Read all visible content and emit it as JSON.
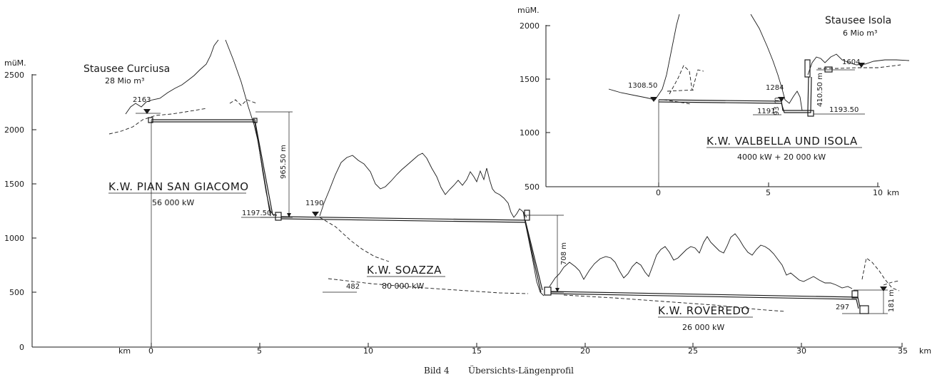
{
  "caption": {
    "prefix": "Bild 4",
    "title": "Übersichts-Längenprofil"
  },
  "main_axis": {
    "y_unit": "müM.",
    "y_ticks": [
      "2500",
      "2000",
      "1500",
      "1000",
      "500",
      "0"
    ],
    "x_ticks": [
      "0",
      "5",
      "10",
      "15",
      "20",
      "25",
      "30",
      "35"
    ],
    "x_unit": "km",
    "x_unit_left": "km"
  },
  "inset_axis": {
    "y_unit": "müM.",
    "y_ticks": [
      "2000",
      "1500",
      "1000",
      "500"
    ],
    "x_ticks": [
      "0",
      "5",
      "10"
    ],
    "x_unit": "km"
  },
  "reservoirs": {
    "curciusa": {
      "name": "Stausee Curciusa",
      "volume": "28 Mio m³",
      "level": "2163"
    },
    "isola": {
      "name": "Stausee Isola",
      "volume": "6 Mio m³",
      "level": "1604"
    }
  },
  "plants": {
    "pian_san_giacomo": {
      "name": "K.W. PIAN SAN GIACOMO",
      "power": "56 000 kW"
    },
    "soazza": {
      "name": "K.W. SOAZZA",
      "power": "80 000 kW"
    },
    "roveredo": {
      "name": "K.W. ROVEREDO",
      "power": "26 000 kW"
    },
    "valbella_isola": {
      "name": "K.W. VALBELLA UND ISOLA",
      "power": "4000 kW + 20 000 kW"
    }
  },
  "annotations": {
    "head_pian": "965.50 m",
    "level_1197": "1197.50",
    "level_1190": "1190",
    "head_soazza": "708 m",
    "level_482": "482",
    "level_297": "297",
    "head_roveredo": "181 m",
    "inset_1308": "1308.50",
    "inset_1284": "1284",
    "inset_93": "93 m",
    "inset_1191": "1191",
    "inset_410": "410.50 m",
    "inset_1193": "1193.50"
  }
}
